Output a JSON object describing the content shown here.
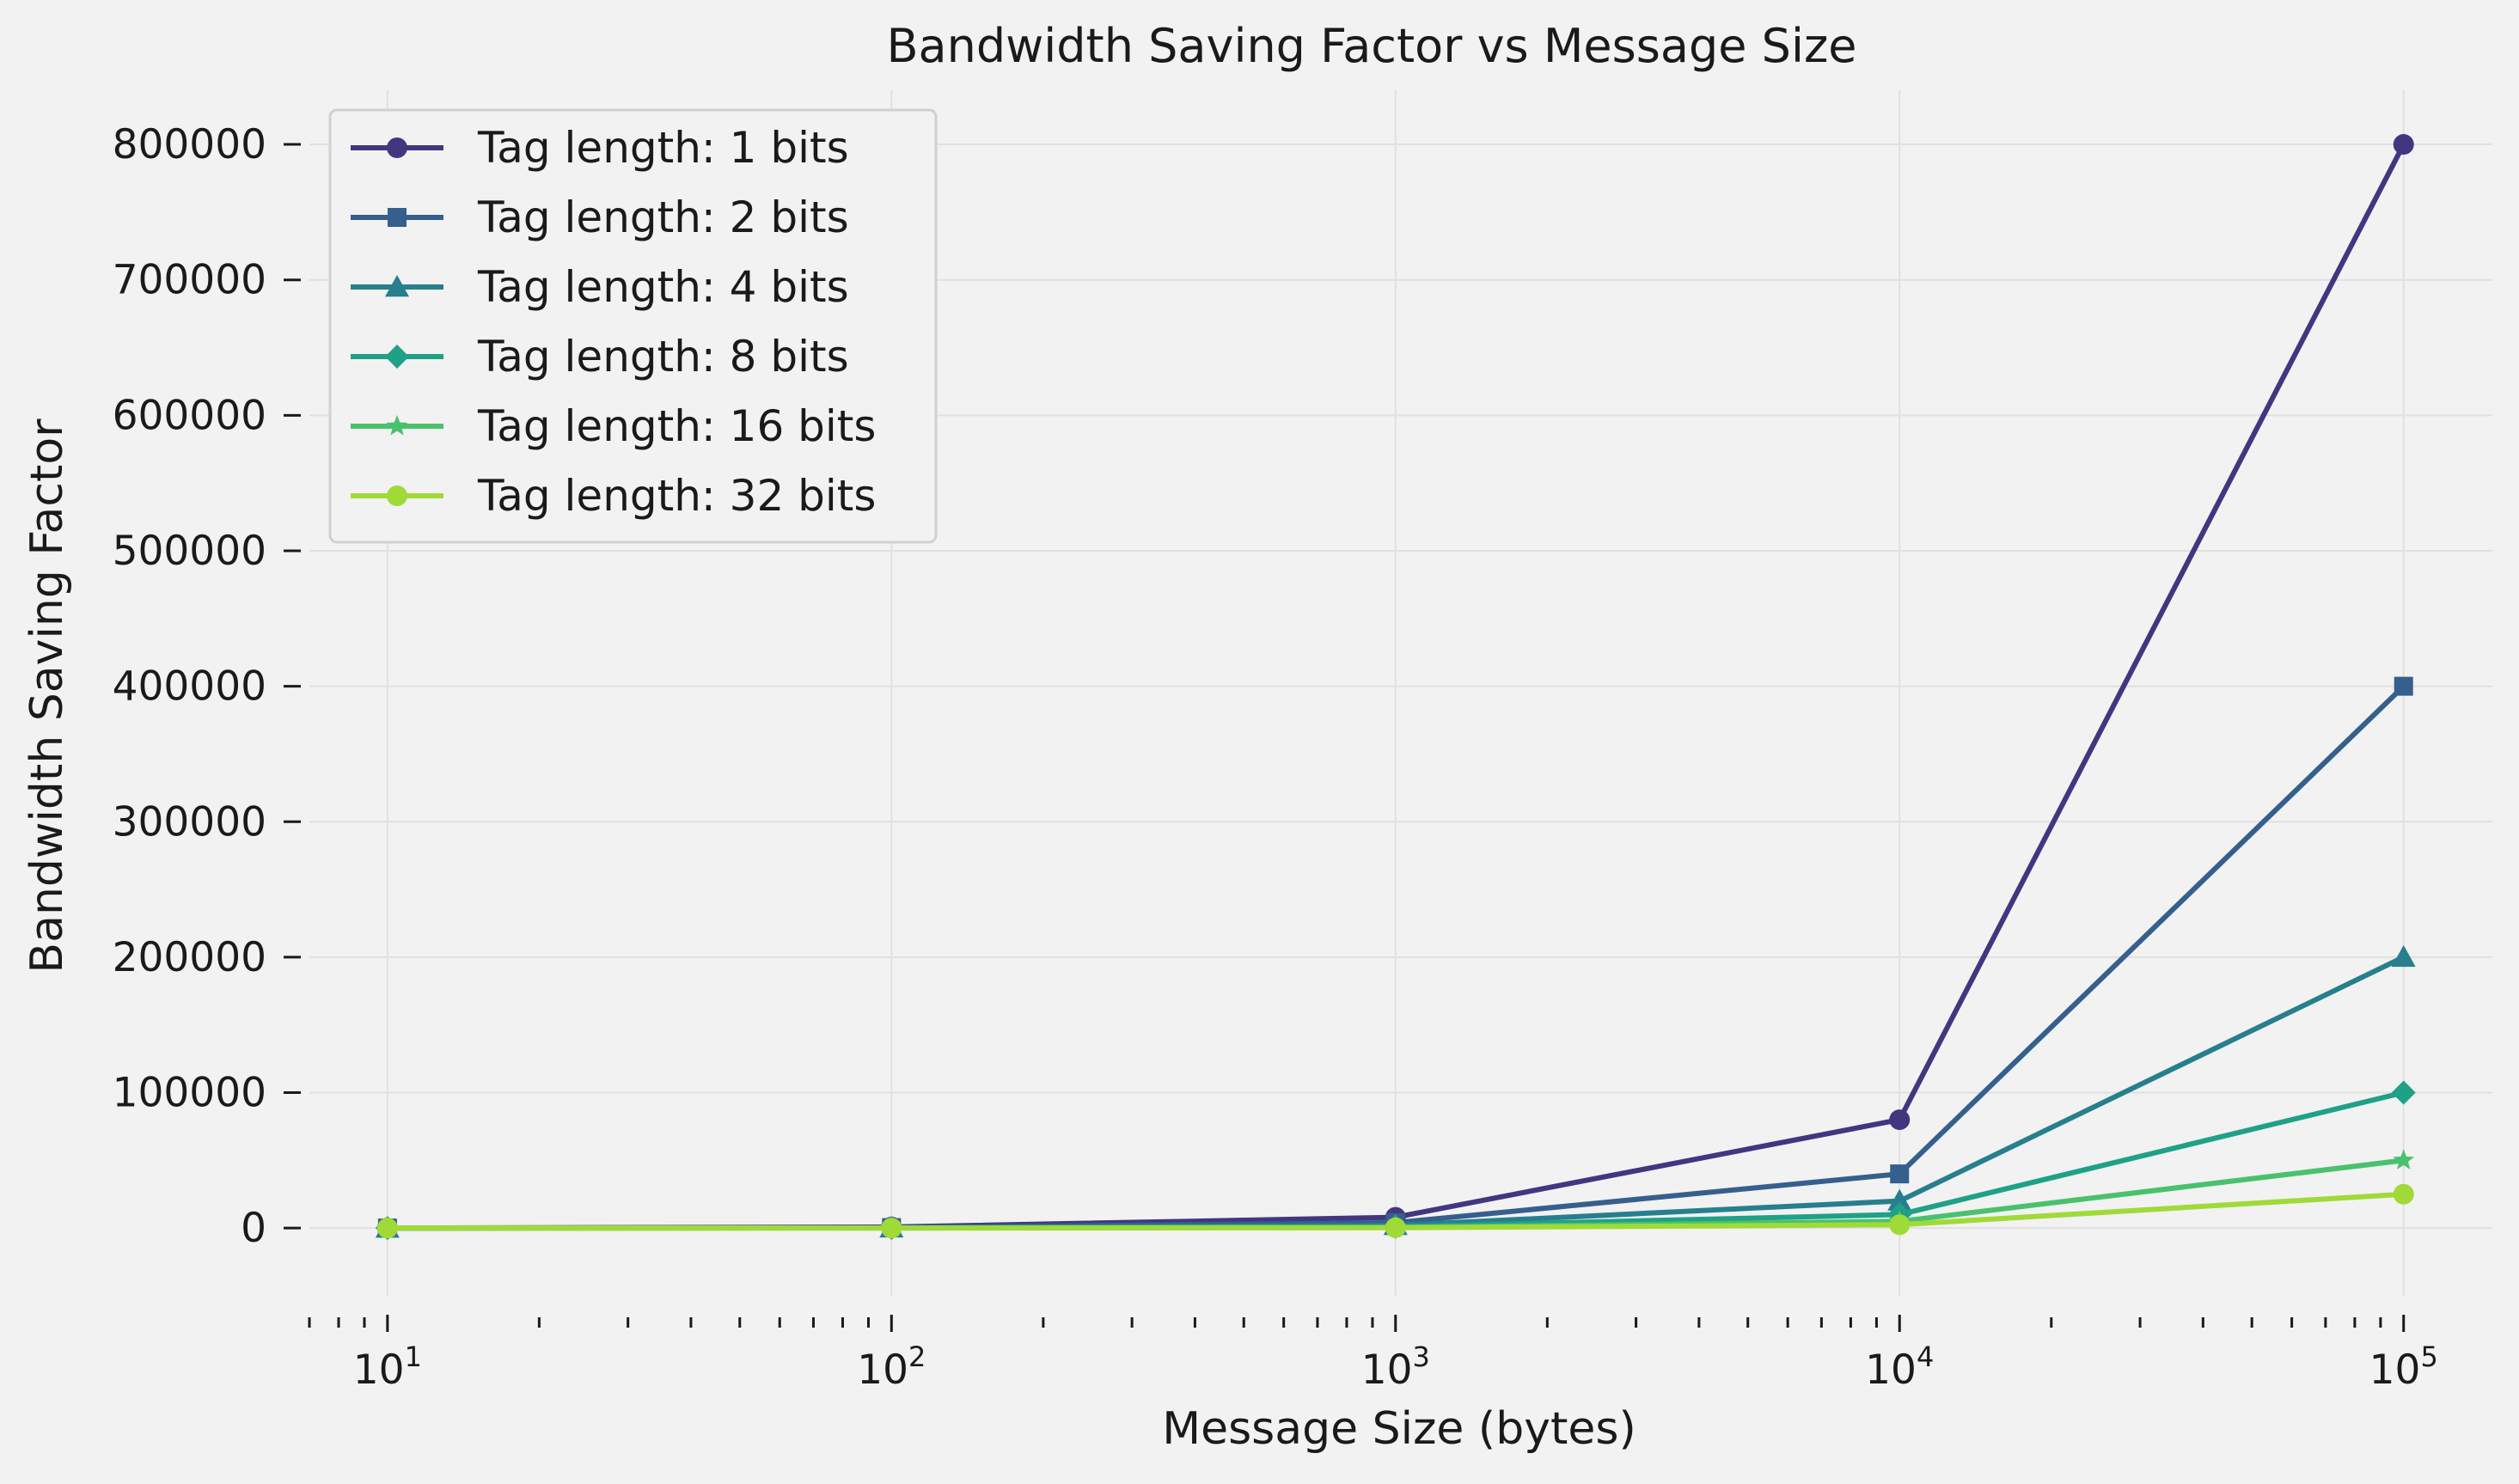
{
  "chart_data": {
    "type": "line",
    "title": "Bandwidth Saving Factor vs Message Size",
    "xlabel": "Message Size (bytes)",
    "ylabel": "Bandwidth Saving Factor",
    "x_scale": "log",
    "xlim": [
      7,
      150000
    ],
    "ylim": [
      -50000,
      840000
    ],
    "x": [
      10,
      100,
      1000,
      10000,
      100000
    ],
    "x_ticks": [
      {
        "value": 10,
        "base": "10",
        "exp": "1"
      },
      {
        "value": 100,
        "base": "10",
        "exp": "2"
      },
      {
        "value": 1000,
        "base": "10",
        "exp": "3"
      },
      {
        "value": 10000,
        "base": "10",
        "exp": "4"
      },
      {
        "value": 100000,
        "base": "10",
        "exp": "5"
      }
    ],
    "y_ticks": [
      0,
      100000,
      200000,
      300000,
      400000,
      500000,
      600000,
      700000,
      800000
    ],
    "y_tick_labels": [
      "0",
      "100000",
      "200000",
      "300000",
      "400000",
      "500000",
      "600000",
      "700000",
      "800000"
    ],
    "grid": true,
    "legend_position": "top-left",
    "series": [
      {
        "name": "Tag length: 1 bits",
        "color": "#433680",
        "marker": "circle",
        "values": [
          80,
          800,
          8000,
          80000,
          800000
        ]
      },
      {
        "name": "Tag length: 2 bits",
        "color": "#355f8d",
        "marker": "square",
        "values": [
          40,
          400,
          4000,
          40000,
          400000
        ]
      },
      {
        "name": "Tag length: 4 bits",
        "color": "#277f8e",
        "marker": "triangle",
        "values": [
          20,
          200,
          2000,
          20000,
          200000
        ]
      },
      {
        "name": "Tag length: 8 bits",
        "color": "#1fa187",
        "marker": "diamond",
        "values": [
          10,
          100,
          1000,
          10000,
          100000
        ]
      },
      {
        "name": "Tag length: 16 bits",
        "color": "#4ac16d",
        "marker": "star",
        "values": [
          5,
          50,
          500,
          5000,
          50000
        ]
      },
      {
        "name": "Tag length: 32 bits",
        "color": "#a0da39",
        "marker": "circle",
        "values": [
          2.5,
          25,
          250,
          2500,
          25000
        ]
      }
    ]
  }
}
